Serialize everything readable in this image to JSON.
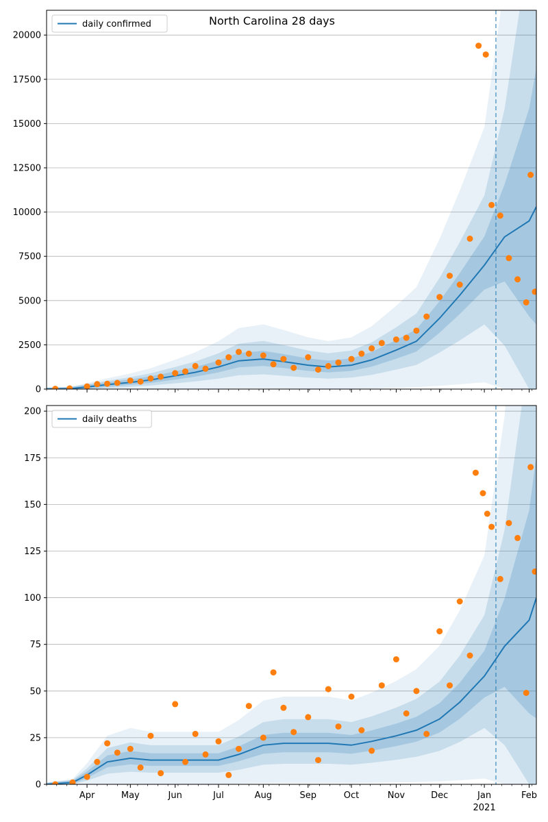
{
  "figure": {
    "title": "North Carolina 28 days"
  },
  "chart_data": [
    {
      "type": "line",
      "title": "North Carolina 28 days",
      "xlabel": "",
      "ylabel": "",
      "ylim": [
        0,
        21400
      ],
      "yticks": [
        0,
        2500,
        5000,
        7500,
        10000,
        12500,
        15000,
        17500,
        20000
      ],
      "x_ticks": [
        "Apr",
        "May",
        "Jun",
        "Jul",
        "Aug",
        "Sep",
        "Oct",
        "Nov",
        "Dec",
        "Jan",
        "Feb"
      ],
      "x_ticks_secondary": {
        "Jan": "2021"
      },
      "x_range": [
        "2020-03-04",
        "2021-02-06"
      ],
      "grid": "horizontal",
      "legend": "top-left",
      "vline_date": "2021-01-09",
      "series": [
        {
          "name": "daily confirmed",
          "kind": "line",
          "color": "#1f77b4",
          "points": [
            [
              "2020-03-04",
              0
            ],
            [
              "2020-03-20",
              20
            ],
            [
              "2020-04-01",
              120
            ],
            [
              "2020-04-15",
              250
            ],
            [
              "2020-05-01",
              380
            ],
            [
              "2020-05-15",
              520
            ],
            [
              "2020-06-01",
              750
            ],
            [
              "2020-06-15",
              950
            ],
            [
              "2020-07-01",
              1250
            ],
            [
              "2020-07-15",
              1600
            ],
            [
              "2020-08-01",
              1700
            ],
            [
              "2020-08-15",
              1550
            ],
            [
              "2020-09-01",
              1350
            ],
            [
              "2020-09-15",
              1250
            ],
            [
              "2020-10-01",
              1350
            ],
            [
              "2020-10-15",
              1650
            ],
            [
              "2020-11-01",
              2200
            ],
            [
              "2020-11-15",
              2700
            ],
            [
              "2020-12-01",
              4000
            ],
            [
              "2020-12-15",
              5300
            ],
            [
              "2021-01-01",
              7000
            ],
            [
              "2021-01-15",
              8600
            ],
            [
              "2021-02-01",
              9500
            ],
            [
              "2021-02-06",
              10300
            ]
          ]
        },
        {
          "name": "",
          "kind": "observations",
          "color": "#ff7f0e",
          "points": [
            [
              "2020-03-10",
              15
            ],
            [
              "2020-03-20",
              40
            ],
            [
              "2020-04-01",
              150
            ],
            [
              "2020-04-08",
              280
            ],
            [
              "2020-04-15",
              300
            ],
            [
              "2020-04-22",
              350
            ],
            [
              "2020-05-01",
              480
            ],
            [
              "2020-05-08",
              420
            ],
            [
              "2020-05-15",
              600
            ],
            [
              "2020-05-22",
              700
            ],
            [
              "2020-06-01",
              900
            ],
            [
              "2020-06-08",
              1000
            ],
            [
              "2020-06-15",
              1300
            ],
            [
              "2020-06-22",
              1150
            ],
            [
              "2020-07-01",
              1500
            ],
            [
              "2020-07-08",
              1800
            ],
            [
              "2020-07-15",
              2100
            ],
            [
              "2020-07-22",
              2000
            ],
            [
              "2020-08-01",
              1900
            ],
            [
              "2020-08-08",
              1400
            ],
            [
              "2020-08-15",
              1700
            ],
            [
              "2020-08-22",
              1200
            ],
            [
              "2020-09-01",
              1800
            ],
            [
              "2020-09-08",
              1100
            ],
            [
              "2020-09-15",
              1300
            ],
            [
              "2020-09-22",
              1500
            ],
            [
              "2020-10-01",
              1700
            ],
            [
              "2020-10-08",
              2000
            ],
            [
              "2020-10-15",
              2300
            ],
            [
              "2020-10-22",
              2600
            ],
            [
              "2020-11-01",
              2800
            ],
            [
              "2020-11-08",
              2900
            ],
            [
              "2020-11-15",
              3300
            ],
            [
              "2020-11-22",
              4100
            ],
            [
              "2020-12-01",
              5200
            ],
            [
              "2020-12-08",
              6400
            ],
            [
              "2020-12-15",
              5900
            ],
            [
              "2020-12-22",
              8500
            ],
            [
              "2020-12-28",
              19400
            ],
            [
              "2021-01-02",
              18900
            ],
            [
              "2021-01-06",
              10400
            ],
            [
              "2021-01-12",
              9800
            ],
            [
              "2021-01-18",
              7400
            ],
            [
              "2021-01-24",
              6200
            ],
            [
              "2021-01-30",
              4900
            ],
            [
              "2021-02-02",
              12100
            ],
            [
              "2021-02-05",
              5500
            ]
          ]
        }
      ]
    },
    {
      "type": "line",
      "title": "",
      "xlabel": "",
      "ylabel": "",
      "ylim": [
        0,
        203
      ],
      "yticks": [
        0,
        25,
        50,
        75,
        100,
        125,
        150,
        175,
        200
      ],
      "x_ticks": [
        "Apr",
        "May",
        "Jun",
        "Jul",
        "Aug",
        "Sep",
        "Oct",
        "Nov",
        "Dec",
        "Jan",
        "Feb"
      ],
      "x_ticks_secondary": {
        "Jan": "2021"
      },
      "x_range": [
        "2020-03-04",
        "2021-02-06"
      ],
      "grid": "horizontal",
      "legend": "top-left",
      "vline_date": "2021-01-09",
      "series": [
        {
          "name": "daily deaths",
          "kind": "line",
          "color": "#1f77b4",
          "points": [
            [
              "2020-03-04",
              0
            ],
            [
              "2020-03-22",
              1
            ],
            [
              "2020-04-01",
              5
            ],
            [
              "2020-04-15",
              12
            ],
            [
              "2020-05-01",
              14
            ],
            [
              "2020-05-15",
              13
            ],
            [
              "2020-06-01",
              13
            ],
            [
              "2020-06-15",
              13
            ],
            [
              "2020-07-01",
              13
            ],
            [
              "2020-07-15",
              16
            ],
            [
              "2020-08-01",
              21
            ],
            [
              "2020-08-15",
              22
            ],
            [
              "2020-09-01",
              22
            ],
            [
              "2020-09-15",
              22
            ],
            [
              "2020-10-01",
              21
            ],
            [
              "2020-10-15",
              23
            ],
            [
              "2020-11-01",
              26
            ],
            [
              "2020-11-15",
              29
            ],
            [
              "2020-12-01",
              35
            ],
            [
              "2020-12-15",
              44
            ],
            [
              "2021-01-01",
              58
            ],
            [
              "2021-01-15",
              74
            ],
            [
              "2021-02-01",
              88
            ],
            [
              "2021-02-06",
              100
            ]
          ]
        },
        {
          "name": "",
          "kind": "observations",
          "color": "#ff7f0e",
          "points": [
            [
              "2020-03-10",
              0
            ],
            [
              "2020-03-22",
              1
            ],
            [
              "2020-04-01",
              4
            ],
            [
              "2020-04-08",
              12
            ],
            [
              "2020-04-15",
              22
            ],
            [
              "2020-04-22",
              17
            ],
            [
              "2020-05-01",
              19
            ],
            [
              "2020-05-08",
              9
            ],
            [
              "2020-05-15",
              26
            ],
            [
              "2020-05-22",
              6
            ],
            [
              "2020-06-01",
              43
            ],
            [
              "2020-06-08",
              12
            ],
            [
              "2020-06-15",
              27
            ],
            [
              "2020-06-22",
              16
            ],
            [
              "2020-07-01",
              23
            ],
            [
              "2020-07-08",
              5
            ],
            [
              "2020-07-15",
              19
            ],
            [
              "2020-07-22",
              42
            ],
            [
              "2020-08-01",
              25
            ],
            [
              "2020-08-08",
              60
            ],
            [
              "2020-08-15",
              41
            ],
            [
              "2020-08-22",
              28
            ],
            [
              "2020-09-01",
              36
            ],
            [
              "2020-09-08",
              13
            ],
            [
              "2020-09-15",
              51
            ],
            [
              "2020-09-22",
              31
            ],
            [
              "2020-10-01",
              47
            ],
            [
              "2020-10-08",
              29
            ],
            [
              "2020-10-15",
              18
            ],
            [
              "2020-10-22",
              53
            ],
            [
              "2020-11-01",
              67
            ],
            [
              "2020-11-08",
              38
            ],
            [
              "2020-11-15",
              50
            ],
            [
              "2020-11-22",
              27
            ],
            [
              "2020-12-01",
              82
            ],
            [
              "2020-12-08",
              53
            ],
            [
              "2020-12-15",
              98
            ],
            [
              "2020-12-22",
              69
            ],
            [
              "2020-12-26",
              167
            ],
            [
              "2020-12-31",
              156
            ],
            [
              "2021-01-03",
              145
            ],
            [
              "2021-01-06",
              138
            ],
            [
              "2021-01-12",
              110
            ],
            [
              "2021-01-18",
              140
            ],
            [
              "2021-01-24",
              132
            ],
            [
              "2021-01-30",
              49
            ],
            [
              "2021-02-02",
              170
            ],
            [
              "2021-02-05",
              114
            ]
          ]
        }
      ]
    }
  ],
  "legend": {
    "confirmed_label": "daily confirmed",
    "deaths_label": "daily deaths"
  },
  "colors": {
    "line": "#1f77b4",
    "points": "#ff7f0e",
    "band": "#1f77b4",
    "grid": "#b0b0b0"
  }
}
